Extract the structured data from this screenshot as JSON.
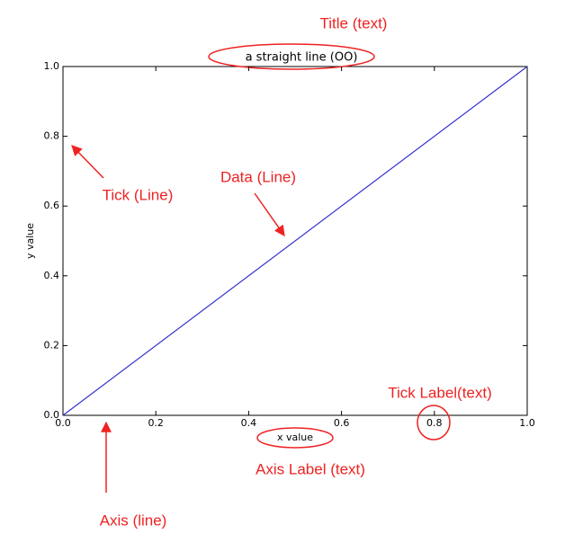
{
  "chart_data": {
    "type": "line",
    "title": "a straight line (OO)",
    "x_label": "x value",
    "y_label": "y value",
    "x": [
      0,
      1
    ],
    "values": [
      0,
      1
    ],
    "color": "#3333cc",
    "xlim": [
      0,
      1
    ],
    "ylim": [
      0,
      1
    ],
    "xticks": [
      {
        "value": 0,
        "label": "0.0"
      },
      0.2,
      0.4,
      0.6,
      0.8,
      {
        "value": 1,
        "label": "1.0"
      }
    ],
    "yticks": [
      {
        "value": 0,
        "label": "0.0"
      },
      0.2,
      0.4,
      0.6,
      0.8,
      {
        "value": 1,
        "label": "1.0"
      }
    ],
    "annotations": [
      "Title (text)",
      "Tick (Line)",
      "Data (Line)",
      "Tick Label(text)",
      "Axis Label (text)",
      "Axis (line)"
    ]
  }
}
